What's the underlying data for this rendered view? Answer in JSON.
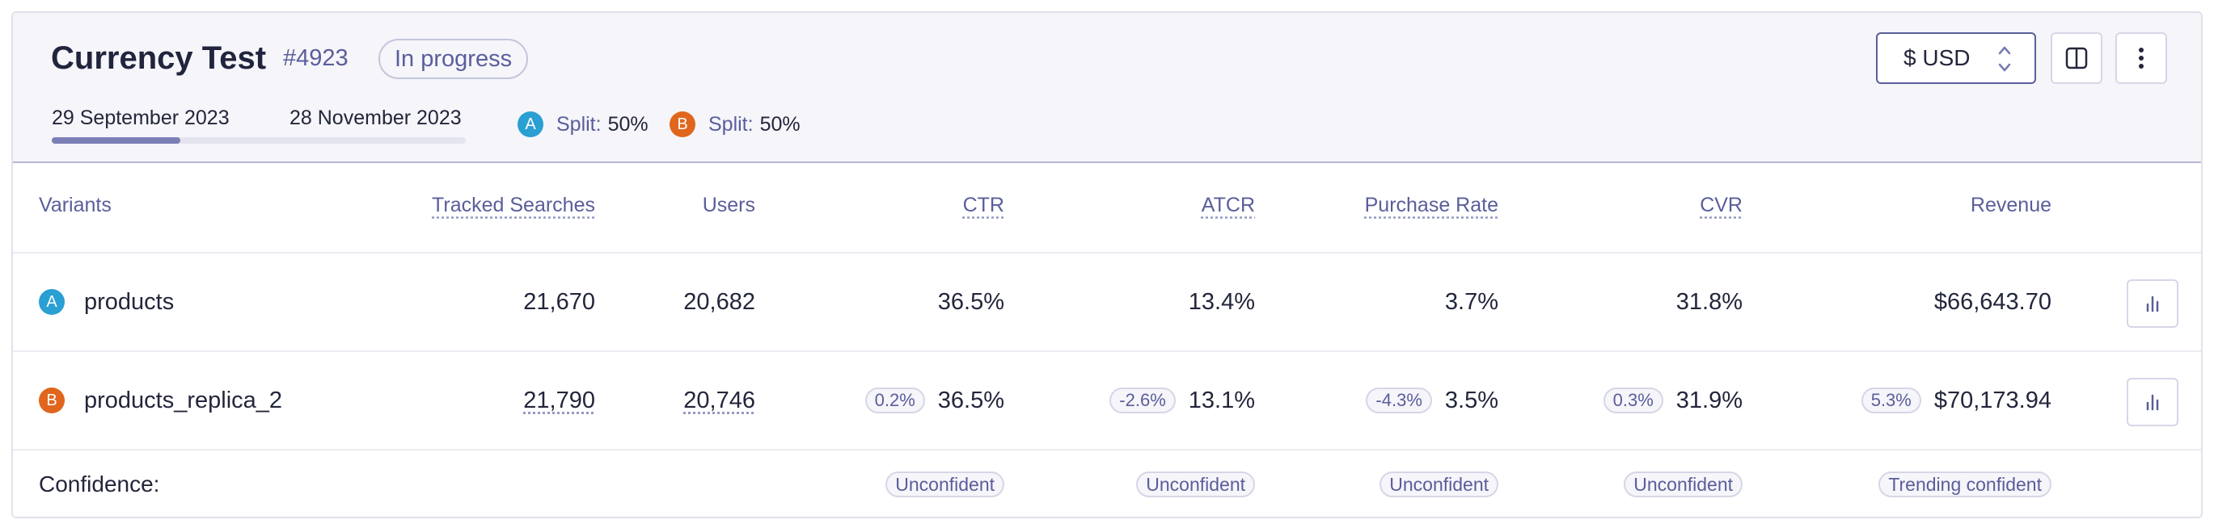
{
  "experiment": {
    "title": "Currency Test",
    "id": "#4923",
    "status": "In progress",
    "start_date": "29 September 2023",
    "end_date": "28 November 2023",
    "progress_fraction": 0.31
  },
  "split": {
    "a": {
      "letter": "A",
      "label": "Split:",
      "value": "50%"
    },
    "b": {
      "letter": "B",
      "label": "Split:",
      "value": "50%"
    }
  },
  "toolbar": {
    "currency": "$ USD"
  },
  "table": {
    "headers": {
      "variants": "Variants",
      "tracked_searches": "Tracked Searches",
      "users": "Users",
      "ctr": "CTR",
      "atcr": "ATCR",
      "purchase_rate": "Purchase Rate",
      "cvr": "CVR",
      "revenue": "Revenue"
    },
    "rows": [
      {
        "letter": "A",
        "name": "products",
        "tracked_searches": "21,670",
        "users": "20,682",
        "ctr": "36.5%",
        "atcr": "13.4%",
        "purchase_rate": "3.7%",
        "cvr": "31.8%",
        "revenue": "$66,643.70"
      },
      {
        "letter": "B",
        "name": "products_replica_2",
        "tracked_searches": "21,790",
        "users": "20,746",
        "ctr": "36.5%",
        "ctr_delta": "0.2%",
        "atcr": "13.1%",
        "atcr_delta": "-2.6%",
        "purchase_rate": "3.5%",
        "purchase_rate_delta": "-4.3%",
        "cvr": "31.9%",
        "cvr_delta": "0.3%",
        "revenue": "$70,173.94",
        "revenue_delta": "5.3%"
      }
    ],
    "confidence": {
      "label": "Confidence:",
      "ctr": "Unconfident",
      "atcr": "Unconfident",
      "purchase_rate": "Unconfident",
      "cvr": "Unconfident",
      "revenue": "Trending confident"
    }
  },
  "colors": {
    "variant_a": "#2a9fd2",
    "variant_b": "#e0661d",
    "accent": "#5a5e9a",
    "progress": "#7b7fb5"
  },
  "icons": {
    "currency_select": "chevron-up-down-icon",
    "panel": "split-panel-icon",
    "more": "more-vertical-icon",
    "row_chart": "bar-chart-icon"
  }
}
